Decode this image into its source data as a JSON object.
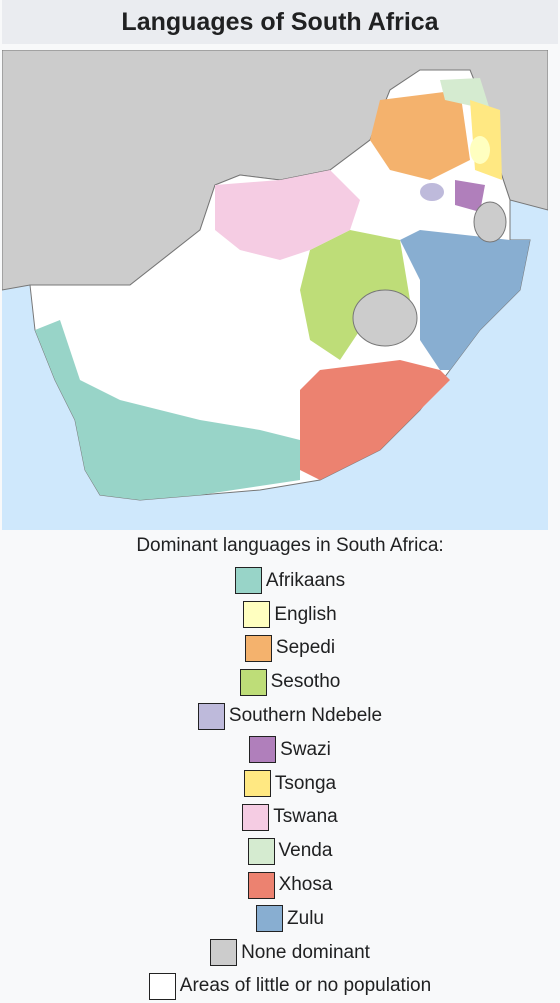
{
  "header": {
    "title": "Languages of South Africa"
  },
  "legend": {
    "caption": "Dominant languages in South Africa:",
    "items": [
      {
        "label": "Afrikaans",
        "color": "#98d4c8"
      },
      {
        "label": "English",
        "color": "#ffffc0"
      },
      {
        "label": "Sepedi",
        "color": "#f4b26d"
      },
      {
        "label": "Sesotho",
        "color": "#bedd78"
      },
      {
        "label": "Southern Ndebele",
        "color": "#bebadb"
      },
      {
        "label": "Swazi",
        "color": "#b07fbb"
      },
      {
        "label": "Tsonga",
        "color": "#ffe882"
      },
      {
        "label": "Tswana",
        "color": "#f5cce3"
      },
      {
        "label": "Venda",
        "color": "#d5ebd0"
      },
      {
        "label": "Xhosa",
        "color": "#ec8270"
      },
      {
        "label": "Zulu",
        "color": "#88aed1"
      },
      {
        "label": "None dominant",
        "color": "#cccccc"
      },
      {
        "label": "Areas of little or no population",
        "color": "#ffffff"
      }
    ]
  }
}
